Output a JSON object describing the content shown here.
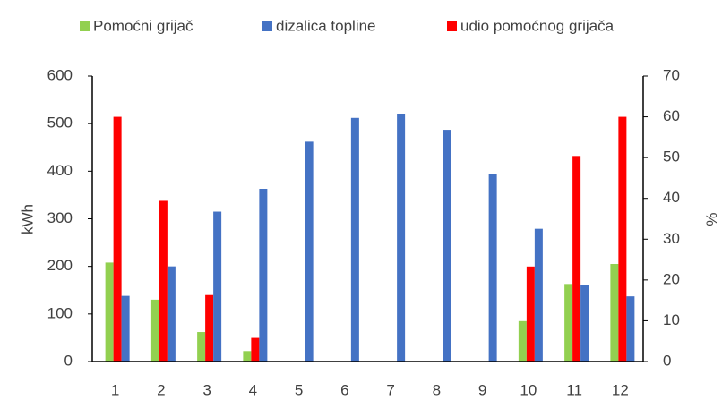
{
  "chart_data": {
    "type": "bar",
    "categories": [
      "1",
      "2",
      "3",
      "4",
      "5",
      "6",
      "7",
      "8",
      "9",
      "10",
      "11",
      "12"
    ],
    "series": [
      {
        "name": "Pomoćni grijač",
        "color": "#92d050",
        "values": [
          208,
          130,
          62,
          22,
          0,
          0,
          0,
          0,
          0,
          85,
          163,
          205
        ]
      },
      {
        "name": "dizalica topline",
        "color": "#4472c4",
        "values": [
          138,
          200,
          315,
          363,
          462,
          512,
          521,
          487,
          394,
          279,
          161,
          137
        ]
      },
      {
        "name": "udio pomoćnog grijača",
        "color": "#ff0000",
        "axis": "y2",
        "values": [
          60,
          39.4,
          16.3,
          5.8,
          0,
          0,
          0,
          0,
          0,
          23.3,
          50.4,
          60
        ]
      }
    ],
    "ylabel": "kWh",
    "y2label": "%",
    "ylim": [
      0,
      600
    ],
    "yticks": [
      0,
      100,
      200,
      300,
      400,
      500,
      600
    ],
    "y2lim": [
      0,
      70
    ],
    "y2ticks": [
      0,
      10,
      20,
      30,
      40,
      50,
      60,
      70
    ],
    "grid": false,
    "legend": "top"
  }
}
